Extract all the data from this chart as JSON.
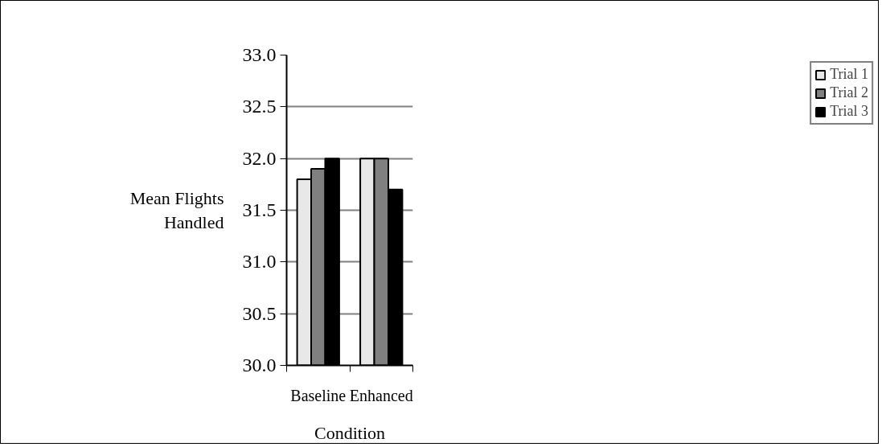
{
  "chart_data": {
    "type": "bar",
    "xlabel": "Condition",
    "ylabel": "Mean Flights Handled",
    "categories": [
      "Baseline",
      "Enhanced"
    ],
    "series": [
      {
        "name": "Trial 1",
        "color": "#e8e8e8",
        "values": [
          31.8,
          32.0
        ]
      },
      {
        "name": "Trial 2",
        "color": "#808080",
        "values": [
          31.9,
          32.0
        ]
      },
      {
        "name": "Trial 3",
        "color": "#000000",
        "values": [
          32.0,
          31.7
        ]
      }
    ],
    "ylim": [
      30.0,
      33.0
    ],
    "yticks": [
      {
        "value": 30,
        "label": "30.0"
      },
      {
        "value": 30.5,
        "label": "30.5"
      },
      {
        "value": 31,
        "label": "31.0"
      },
      {
        "value": 31.5,
        "label": "31.5"
      },
      {
        "value": 32,
        "label": "32.0"
      },
      {
        "value": 32.5,
        "label": "32.5"
      },
      {
        "value": 33,
        "label": "33.0"
      }
    ],
    "grid": "y",
    "legend": "right"
  }
}
